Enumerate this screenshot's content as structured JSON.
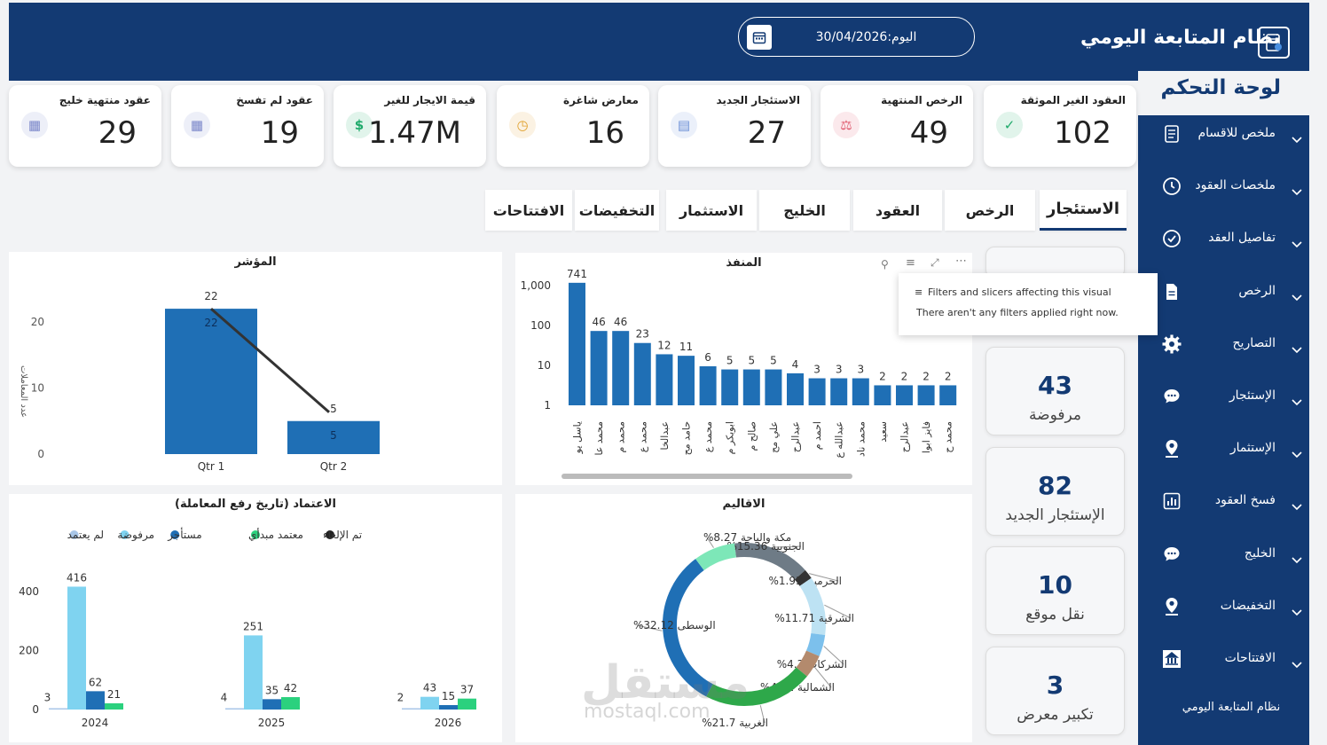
{
  "header": {
    "title": "نظام المتابعة اليومي",
    "date_label": "اليوم:30/04/2026"
  },
  "sidebar": {
    "title": "لوحة التحكم",
    "items": [
      {
        "label": "ملخص للاقسام",
        "icon": "report-icon"
      },
      {
        "label": "ملخصات العقود",
        "icon": "clock-icon"
      },
      {
        "label": "تفاصيل العقد",
        "icon": "check-circle-icon"
      },
      {
        "label": "الرخص",
        "icon": "document-icon"
      },
      {
        "label": "التصاريح",
        "icon": "gear-icon"
      },
      {
        "label": "الإستئجار",
        "icon": "chat-icon"
      },
      {
        "label": "الإستثمار",
        "icon": "person-pin-icon"
      },
      {
        "label": "فسخ العقود",
        "icon": "bar-chart-icon"
      },
      {
        "label": "الخليج",
        "icon": "chat-icon"
      },
      {
        "label": "التخفيضات",
        "icon": "person-pin-icon"
      },
      {
        "label": "الافتتاحات",
        "icon": "building-icon"
      }
    ],
    "footer": "نظام المتابعة اليومي"
  },
  "kpis": [
    {
      "label": "العقود الغير الموثقة",
      "value": "102",
      "icon": "check-icon",
      "color": "#1faa6b"
    },
    {
      "label": "الرخص المنتهية",
      "value": "49",
      "icon": "scale-icon",
      "color": "#e05a6d"
    },
    {
      "label": "الاستئجار الجديد",
      "value": "27",
      "icon": "document-icon",
      "color": "#6b8fd6"
    },
    {
      "label": "معارض شاغرة",
      "value": "16",
      "icon": "clock-icon",
      "color": "#e0a02b"
    },
    {
      "label": "قيمة الايجار للغير",
      "value": "1.47M",
      "icon": "dollar-icon",
      "color": "#1faa6b"
    },
    {
      "label": "عقود لم تفسخ",
      "value": "19",
      "icon": "file-icon",
      "color": "#7a86c9"
    },
    {
      "label": "عقود منتهية خليج",
      "value": "29",
      "icon": "file-icon",
      "color": "#7a86c9"
    }
  ],
  "tabs": [
    "الاستئجار",
    "الرخص",
    "العقود",
    "الخليج",
    "الاستثمار",
    "التخفيضات",
    "الافتتاحات"
  ],
  "stat_cards": [
    {
      "value": "43",
      "label": "مرفوضة"
    },
    {
      "value": "82",
      "label": "الإستئجار الجديد"
    },
    {
      "value": "10",
      "label": "نقل موقع"
    },
    {
      "value": "3",
      "label": "تكبير معرض"
    }
  ],
  "tooltip": {
    "title": "Filters and slicers affecting this visual",
    "body": "There aren't any filters applied right now."
  },
  "watermark": {
    "ar": "مستقل",
    "en": "mostaql.com"
  },
  "chart_data": [
    {
      "type": "bar",
      "title": "المؤشر",
      "ylabel": "عدد المعاملات",
      "categories": [
        "Qtr 1",
        "Qtr 2"
      ],
      "values": [
        22,
        5
      ],
      "line_values": [
        22,
        5
      ],
      "ylim": [
        0,
        25
      ],
      "yticks": [
        0,
        10,
        20
      ]
    },
    {
      "type": "bar",
      "title": "المنفذ",
      "scale": "log",
      "yticks": [
        "1",
        "10",
        "100",
        "1,000"
      ],
      "categories": [
        "ياسل يو",
        "محمد عا",
        "محمد م",
        "محمد ع",
        "عبدالخا",
        "حامد مح",
        "محمد ع",
        "ابوبكر م",
        "صالح م",
        "علي مح",
        "عبدالرح",
        "احمد م",
        "عبدالله ع",
        "محمد ناد",
        "سعيد",
        "عبدالرح",
        "فايز ابوا",
        "محمد ح"
      ],
      "values": [
        741,
        46,
        46,
        23,
        12,
        11,
        6,
        5,
        5,
        5,
        4,
        3,
        3,
        3,
        2,
        2,
        2,
        2
      ]
    },
    {
      "type": "bar",
      "title": "الاعتماد (تاريخ رفع المعاملة)",
      "categories": [
        "2024",
        "2025",
        "2026"
      ],
      "yticks": [
        0,
        200,
        400
      ],
      "legend": [
        {
          "name": "تم الإلغاء",
          "color": "#222222"
        },
        {
          "name": "معتمد مبدأي",
          "color": "#2bd17e"
        },
        {
          "name": "مستأجر",
          "color": "#1f6fb5"
        },
        {
          "name": "مرفوضة",
          "color": "#7fd3f0"
        },
        {
          "name": "لم يعتمد",
          "color": "#a8c6e8"
        }
      ],
      "series": [
        {
          "name": "لم يعتمد",
          "values": [
            3,
            4,
            2
          ],
          "color": "#a8c6e8"
        },
        {
          "name": "مرفوضة",
          "values": [
            416,
            251,
            43
          ],
          "color": "#7fd3f0"
        },
        {
          "name": "مستأجر",
          "values": [
            62,
            35,
            15
          ],
          "color": "#1f6fb5"
        },
        {
          "name": "معتمد مبدأي",
          "values": [
            21,
            42,
            37
          ],
          "color": "#2bd17e"
        }
      ]
    },
    {
      "type": "pie",
      "title": "الاقاليم",
      "slices": [
        {
          "label": "الجنوبية 15.36%",
          "value": 15.36,
          "color": "#6e7b86"
        },
        {
          "label": "الحرمين 1.93%",
          "value": 1.93,
          "color": "#333333"
        },
        {
          "label": "الشرقية 11.71%",
          "value": 11.71,
          "color": "#bde2f3"
        },
        {
          "label": "الشركات 4.3%",
          "value": 4.3,
          "color": "#7cc0ec"
        },
        {
          "label": "الشمالية 4.62%",
          "value": 4.62,
          "color": "#b38a6d"
        },
        {
          "label": "الغربية 21.7%",
          "value": 21.7,
          "color": "#2ea84a"
        },
        {
          "label": "الوسطى 32.12%",
          "value": 32.12,
          "color": "#1f6fb5"
        },
        {
          "label": "مكة والباحة 8.27%",
          "value": 8.27,
          "color": "#7de7b8"
        }
      ]
    }
  ]
}
